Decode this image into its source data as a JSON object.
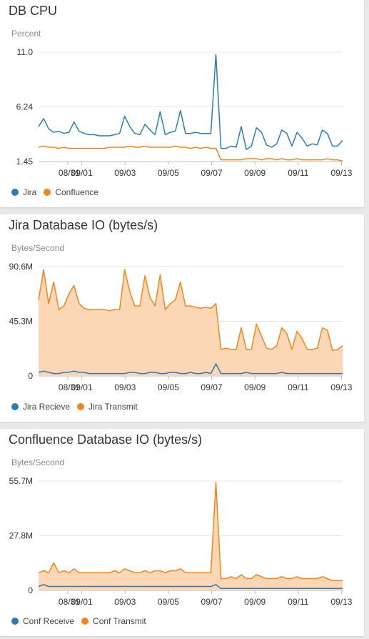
{
  "colors": {
    "blue": "#2b7bba",
    "orange": "#f58518",
    "orange_fill": "#fcd7b6",
    "blue_fill": "#c5d2dc"
  },
  "x_ticks": [
    "08/31",
    "09/01",
    "09/03",
    "09/05",
    "09/07",
    "09/09",
    "09/11",
    "09/13"
  ],
  "charts": [
    {
      "title": "DB CPU",
      "unit": "Percent",
      "y_ticks": [
        "11.0",
        "6.24",
        "1.45"
      ],
      "legend": [
        {
          "label": "Jira"
        },
        {
          "label": "Confluence"
        }
      ]
    },
    {
      "title": "Jira Database IO (bytes/s)",
      "unit": "Bytes/Second",
      "y_ticks": [
        "90.6M",
        "45.3M",
        "0"
      ],
      "legend": [
        {
          "label": "Jira Recieve"
        },
        {
          "label": "Jira Transmit"
        }
      ]
    },
    {
      "title": "Confluence Database IO (bytes/s)",
      "unit": "Bytes/Second",
      "y_ticks": [
        "55.7M",
        "27.8M",
        "0"
      ],
      "legend": [
        {
          "label": "Conf Receive"
        },
        {
          "label": "Conf Transmit"
        }
      ]
    }
  ],
  "chart_data": [
    {
      "type": "line",
      "title": "DB CPU",
      "ylabel": "Percent",
      "ylim": [
        1.45,
        11.0
      ],
      "x_start": "08/30",
      "x_end": "09/13",
      "x_ticks": [
        "08/31",
        "09/01",
        "09/03",
        "09/05",
        "09/07",
        "09/09",
        "09/11",
        "09/13"
      ],
      "series": [
        {
          "name": "Jira",
          "color": "#2b7bba",
          "values": [
            4.5,
            5.2,
            4.3,
            4.0,
            4.1,
            3.9,
            4.0,
            4.9,
            4.1,
            3.9,
            3.8,
            3.8,
            3.7,
            3.7,
            3.7,
            3.8,
            3.9,
            5.4,
            4.5,
            3.9,
            3.8,
            4.7,
            4.2,
            3.8,
            5.8,
            3.8,
            4.0,
            4.1,
            5.9,
            3.9,
            3.9,
            4.0,
            3.9,
            3.9,
            3.9,
            10.8,
            2.6,
            2.6,
            2.8,
            2.7,
            4.5,
            2.5,
            2.8,
            4.4,
            4.0,
            2.9,
            2.7,
            3.0,
            4.2,
            3.9,
            2.8,
            4.0,
            3.5,
            2.8,
            3.0,
            2.9,
            4.2,
            3.9,
            2.8,
            2.8,
            3.3
          ]
        },
        {
          "name": "Confluence",
          "color": "#f58518",
          "values": [
            2.7,
            2.8,
            2.7,
            2.7,
            2.6,
            2.7,
            2.6,
            2.6,
            2.6,
            2.6,
            2.6,
            2.6,
            2.6,
            2.6,
            2.7,
            2.7,
            2.7,
            2.7,
            2.8,
            2.7,
            2.7,
            2.8,
            2.7,
            2.7,
            2.7,
            2.7,
            2.7,
            2.8,
            2.7,
            2.7,
            2.6,
            2.7,
            2.6,
            2.7,
            2.6,
            2.6,
            1.6,
            1.6,
            1.6,
            1.6,
            1.6,
            1.7,
            1.7,
            1.7,
            1.6,
            1.7,
            1.7,
            1.6,
            1.7,
            1.6,
            1.6,
            1.7,
            1.6,
            1.6,
            1.6,
            1.6,
            1.6,
            1.7,
            1.6,
            1.6,
            1.5
          ]
        }
      ]
    },
    {
      "type": "area",
      "title": "Jira Database IO (bytes/s)",
      "ylabel": "Bytes/Second",
      "ylim": [
        0,
        90.6
      ],
      "y_unit": "M",
      "x_start": "08/30",
      "x_end": "09/13",
      "x_ticks": [
        "08/31",
        "09/01",
        "09/03",
        "09/05",
        "09/07",
        "09/09",
        "09/11",
        "09/13"
      ],
      "series": [
        {
          "name": "Jira Recieve",
          "color": "#2b7bba",
          "values": [
            3,
            4,
            3,
            2,
            2,
            3,
            3,
            4,
            3,
            3,
            2,
            2,
            2,
            2,
            2,
            2,
            2,
            2,
            3,
            3,
            2,
            2,
            3,
            3,
            2,
            2,
            3,
            3,
            2,
            2,
            3,
            2,
            2,
            3,
            2,
            10,
            2,
            2,
            2,
            2,
            2,
            3,
            2,
            2,
            2,
            2,
            2,
            2,
            3,
            2,
            2,
            2,
            2,
            2,
            2,
            2,
            2,
            2,
            2,
            2,
            2
          ]
        },
        {
          "name": "Jira Transmit",
          "color": "#f58518",
          "values": [
            63,
            88,
            60,
            78,
            55,
            58,
            68,
            75,
            60,
            56,
            55,
            55,
            55,
            55,
            54,
            55,
            55,
            88,
            70,
            58,
            58,
            83,
            65,
            58,
            84,
            55,
            60,
            63,
            78,
            58,
            58,
            57,
            56,
            57,
            56,
            60,
            22,
            23,
            22,
            22,
            40,
            22,
            22,
            43,
            33,
            23,
            22,
            25,
            40,
            35,
            22,
            37,
            31,
            22,
            22,
            23,
            40,
            38,
            21,
            22,
            25
          ]
        }
      ]
    },
    {
      "type": "area",
      "title": "Confluence Database IO (bytes/s)",
      "ylabel": "Bytes/Second",
      "ylim": [
        0,
        55.7
      ],
      "y_unit": "M",
      "x_start": "08/30",
      "x_end": "09/13",
      "x_ticks": [
        "08/31",
        "09/01",
        "09/03",
        "09/05",
        "09/07",
        "09/09",
        "09/11",
        "09/13"
      ],
      "series": [
        {
          "name": "Conf Receive",
          "color": "#2b7bba",
          "values": [
            2,
            3,
            2,
            2,
            2,
            2,
            2,
            2,
            2,
            2,
            2,
            2,
            2,
            2,
            2,
            2,
            2,
            2,
            2,
            2,
            2,
            2,
            2,
            2,
            2,
            2,
            2,
            2,
            2,
            2,
            2,
            2,
            2,
            2,
            2,
            3,
            1,
            1,
            1,
            1,
            1,
            1,
            1,
            1,
            1,
            1,
            1,
            1,
            1,
            1,
            1,
            1,
            1,
            1,
            1,
            1,
            1,
            1,
            1,
            1,
            1
          ]
        },
        {
          "name": "Conf Transmit",
          "color": "#f58518",
          "values": [
            9,
            10,
            9,
            14,
            9,
            10,
            9,
            11,
            9,
            9,
            9,
            9,
            9,
            9,
            9,
            10,
            9,
            11,
            10,
            9,
            9,
            10,
            9,
            10,
            10,
            9,
            10,
            10,
            11,
            9,
            9,
            9,
            9,
            9,
            9,
            55,
            6,
            6,
            7,
            6,
            8,
            6,
            6,
            8,
            7,
            6,
            6,
            6,
            7,
            6,
            6,
            7,
            6,
            6,
            6,
            6,
            7,
            6,
            5,
            5,
            5
          ]
        }
      ]
    }
  ]
}
